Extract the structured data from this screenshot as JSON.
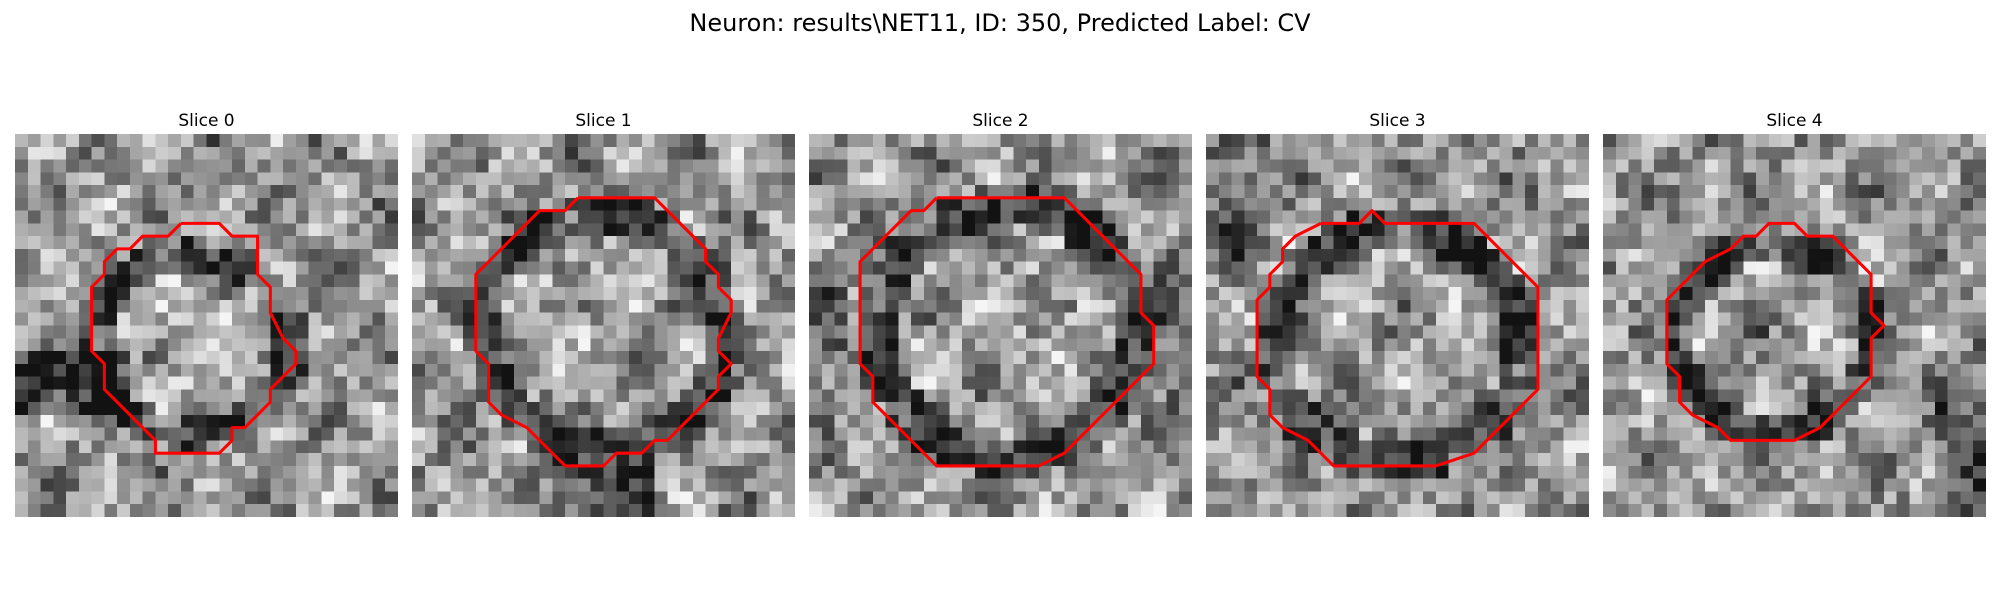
{
  "figure": {
    "title": "Neuron: results\\NET11, ID: 350, Predicted Label: CV"
  },
  "panels": [
    {
      "title": "Slice 0",
      "image_description": "grayscale microscopy tile",
      "contour_color": "#ff0000"
    },
    {
      "title": "Slice 1",
      "image_description": "grayscale microscopy tile",
      "contour_color": "#ff0000"
    },
    {
      "title": "Slice 2",
      "image_description": "grayscale microscopy tile",
      "contour_color": "#ff0000"
    },
    {
      "title": "Slice 3",
      "image_description": "grayscale microscopy tile",
      "contour_color": "#ff0000"
    },
    {
      "title": "Slice 4",
      "image_description": "grayscale microscopy tile",
      "contour_color": "#ff0000"
    }
  ],
  "style": {
    "background": "#ffffff",
    "contour_color": "#ff0000"
  }
}
